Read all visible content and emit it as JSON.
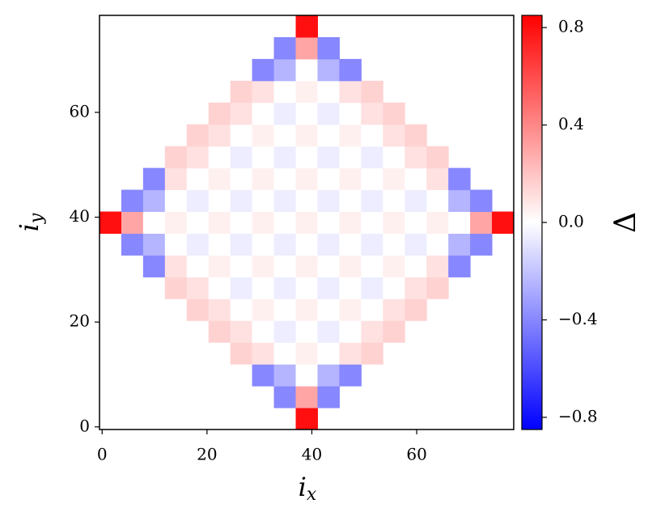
{
  "chart_data": {
    "type": "heatmap",
    "xlabel": {
      "base": "i",
      "sub": "x"
    },
    "ylabel": {
      "base": "i",
      "sub": "y"
    },
    "colorbar_label": "Δ",
    "colormap": "bwr",
    "xlim": [
      -0.5,
      78.5
    ],
    "ylim": [
      -0.5,
      78.5
    ],
    "xticks": [
      0,
      20,
      40,
      60
    ],
    "yticks": [
      0,
      20,
      40,
      60
    ],
    "clim": [
      -0.85,
      0.85
    ],
    "cticks": [
      {
        "value": -0.8,
        "label": "−0.8"
      },
      {
        "value": -0.4,
        "label": "−0.4"
      },
      {
        "value": 0,
        "label": "0.0"
      },
      0.4,
      0.8
    ],
    "x": [
      1.58,
      5.74,
      9.89,
      14.05,
      18.21,
      22.37,
      26.53,
      30.68,
      34.84,
      39.0,
      43.16,
      47.32,
      51.47,
      55.63,
      59.79,
      63.95,
      68.11,
      72.26,
      76.42
    ],
    "y": [
      1.58,
      5.74,
      9.89,
      14.05,
      18.21,
      22.37,
      26.53,
      30.68,
      34.84,
      39.0,
      43.16,
      47.32,
      51.47,
      55.63,
      59.79,
      63.95,
      68.11,
      72.26,
      76.42
    ],
    "values": [
      [
        null,
        null,
        null,
        null,
        null,
        null,
        null,
        null,
        null,
        0.8,
        null,
        null,
        null,
        null,
        null,
        null,
        null,
        null,
        null
      ],
      [
        null,
        null,
        null,
        null,
        null,
        null,
        null,
        null,
        -0.4,
        0.3,
        -0.4,
        null,
        null,
        null,
        null,
        null,
        null,
        null,
        null
      ],
      [
        null,
        null,
        null,
        null,
        null,
        null,
        null,
        -0.4,
        -0.25,
        0,
        -0.25,
        -0.4,
        null,
        null,
        null,
        null,
        null,
        null,
        null
      ],
      [
        null,
        null,
        null,
        null,
        null,
        null,
        0.15,
        0.1,
        0,
        0.05,
        0,
        0.1,
        0.15,
        null,
        null,
        null,
        null,
        null,
        null
      ],
      [
        null,
        null,
        null,
        null,
        null,
        0.15,
        0.1,
        0,
        -0.06,
        0,
        -0.06,
        0,
        0.1,
        0.15,
        null,
        null,
        null,
        null,
        null
      ],
      [
        null,
        null,
        null,
        null,
        0.15,
        0.1,
        0,
        0.05,
        0,
        0.05,
        0,
        0.05,
        0,
        0.1,
        0.15,
        null,
        null,
        null,
        null
      ],
      [
        null,
        null,
        null,
        0.15,
        0.1,
        0,
        -0.06,
        0,
        -0.06,
        0,
        -0.06,
        0,
        -0.06,
        0,
        0.1,
        0.15,
        null,
        null,
        null
      ],
      [
        null,
        null,
        -0.4,
        0.1,
        0,
        0.05,
        0,
        0.05,
        0,
        0.05,
        0,
        0.05,
        0,
        0.05,
        0,
        0.1,
        -0.4,
        null,
        null
      ],
      [
        null,
        -0.4,
        -0.25,
        0,
        -0.06,
        0,
        -0.06,
        0,
        -0.06,
        0,
        -0.06,
        0,
        -0.06,
        0,
        -0.06,
        0,
        -0.25,
        -0.4,
        null
      ],
      [
        0.8,
        0.3,
        0,
        0.05,
        0,
        0.05,
        0,
        0.05,
        0,
        0.05,
        0,
        0.05,
        0,
        0.05,
        0,
        0.05,
        0,
        0.3,
        0.8
      ],
      [
        null,
        -0.4,
        -0.25,
        0,
        -0.06,
        0,
        -0.06,
        0,
        -0.06,
        0,
        -0.06,
        0,
        -0.06,
        0,
        -0.06,
        0,
        -0.25,
        -0.4,
        null
      ],
      [
        null,
        null,
        -0.4,
        0.1,
        0,
        0.05,
        0,
        0.05,
        0,
        0.05,
        0,
        0.05,
        0,
        0.05,
        0,
        0.1,
        -0.4,
        null,
        null
      ],
      [
        null,
        null,
        null,
        0.15,
        0.1,
        0,
        -0.06,
        0,
        -0.06,
        0,
        -0.06,
        0,
        -0.06,
        0,
        0.1,
        0.15,
        null,
        null,
        null
      ],
      [
        null,
        null,
        null,
        null,
        0.15,
        0.1,
        0,
        0.05,
        0,
        0.05,
        0,
        0.05,
        0,
        0.1,
        0.15,
        null,
        null,
        null,
        null
      ],
      [
        null,
        null,
        null,
        null,
        null,
        0.15,
        0.1,
        0,
        -0.06,
        0,
        -0.06,
        0,
        0.1,
        0.15,
        null,
        null,
        null,
        null,
        null
      ],
      [
        null,
        null,
        null,
        null,
        null,
        null,
        0.15,
        0.1,
        0,
        0.05,
        0,
        0.1,
        0.15,
        null,
        null,
        null,
        null,
        null,
        null
      ],
      [
        null,
        null,
        null,
        null,
        null,
        null,
        null,
        -0.4,
        -0.25,
        0,
        -0.25,
        -0.4,
        null,
        null,
        null,
        null,
        null,
        null,
        null
      ],
      [
        null,
        null,
        null,
        null,
        null,
        null,
        null,
        null,
        -0.4,
        0.3,
        -0.4,
        null,
        null,
        null,
        null,
        null,
        null,
        null,
        null
      ],
      [
        null,
        null,
        null,
        null,
        null,
        null,
        null,
        null,
        null,
        0.8,
        null,
        null,
        null,
        null,
        null,
        null,
        null,
        null,
        null
      ]
    ]
  }
}
